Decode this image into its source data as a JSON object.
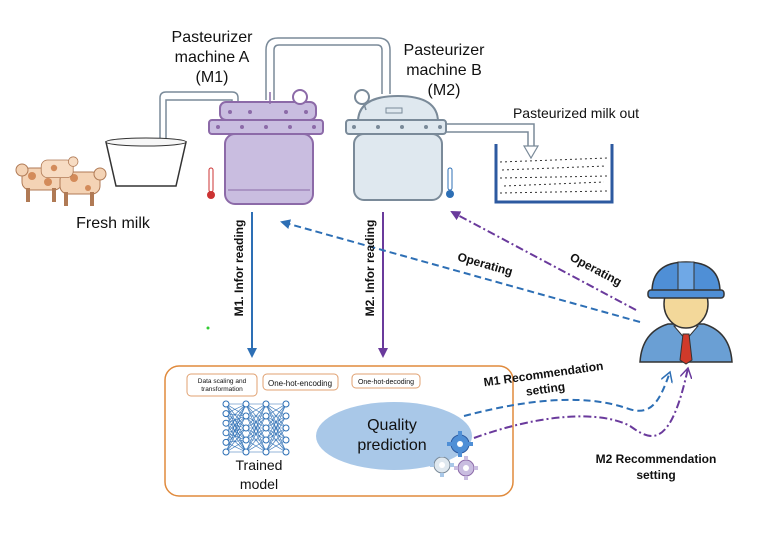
{
  "machine_a": {
    "line1": "Pasteurizer",
    "line2": "machine A",
    "line3": "(M1)"
  },
  "machine_b": {
    "line1": "Pasteurizer",
    "line2": "machine B",
    "line3": "(M2)"
  },
  "pasteurized_out": "Pasteurized milk out",
  "fresh_milk": "Fresh milk",
  "m1_reading": "M1. Infor reading",
  "m2_reading": "M2. Infor reading",
  "operating": "Operating",
  "model_box": {
    "step1_line1": "Data scaling and",
    "step1_line2": "transformation",
    "step2": "One-hot-encoding",
    "step3": "One-hot-decoding",
    "trained_line1": "Trained",
    "trained_line2": "model",
    "quality_line1": "Quality",
    "quality_line2": "prediction"
  },
  "m1_recommendation": {
    "line1": "M1 Recommendation",
    "line2": "setting"
  },
  "m2_recommendation": {
    "line1": "M2 Recommendation",
    "line2": "setting"
  },
  "colors": {
    "machine_a": "#8c6aa8",
    "machine_a_fill": "#c9bde0",
    "machine_b": "#7a8a99",
    "machine_b_fill": "#dfe8ef",
    "blue_arrow": "#2d6fb5",
    "purple_arrow": "#6a3a9c",
    "model_border": "#e08a3c",
    "ellipse": "#a9c8e8"
  },
  "icons": [
    "cow-icon",
    "milk-bowl-icon",
    "thermometer-icon",
    "milk-tank-icon",
    "engineer-icon",
    "neural-network-icon",
    "gears-icon"
  ]
}
